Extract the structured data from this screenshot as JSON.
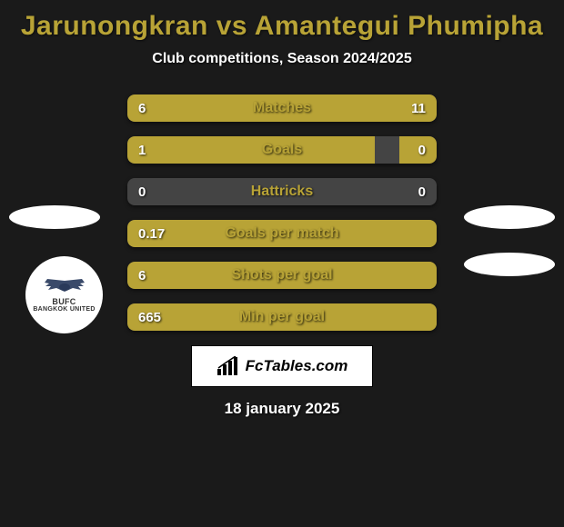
{
  "title": "Jarunongkran vs Amantegui Phumipha",
  "subtitle": "Club competitions, Season 2024/2025",
  "date": "18 january 2025",
  "footer_brand": "FcTables.com",
  "colors": {
    "background": "#1a1a1a",
    "accent": "#b8a336",
    "bar_left": "#b8a336",
    "bar_right": "#b8a336",
    "bar_track": "#444444",
    "text_white": "#ffffff"
  },
  "club_badge": {
    "line1": "BUFC",
    "line2": "BANGKOK UNITED"
  },
  "stats": [
    {
      "label": "Matches",
      "left_val": "6",
      "right_val": "11",
      "left_pct": 35,
      "right_pct": 65
    },
    {
      "label": "Goals",
      "left_val": "1",
      "right_val": "0",
      "left_pct": 80,
      "right_pct": 12
    },
    {
      "label": "Hattricks",
      "left_val": "0",
      "right_val": "0",
      "left_pct": 0,
      "right_pct": 0
    },
    {
      "label": "Goals per match",
      "left_val": "0.17",
      "right_val": "",
      "left_pct": 100,
      "right_pct": 0
    },
    {
      "label": "Shots per goal",
      "left_val": "6",
      "right_val": "",
      "left_pct": 100,
      "right_pct": 0
    },
    {
      "label": "Min per goal",
      "left_val": "665",
      "right_val": "",
      "left_pct": 100,
      "right_pct": 0
    }
  ]
}
